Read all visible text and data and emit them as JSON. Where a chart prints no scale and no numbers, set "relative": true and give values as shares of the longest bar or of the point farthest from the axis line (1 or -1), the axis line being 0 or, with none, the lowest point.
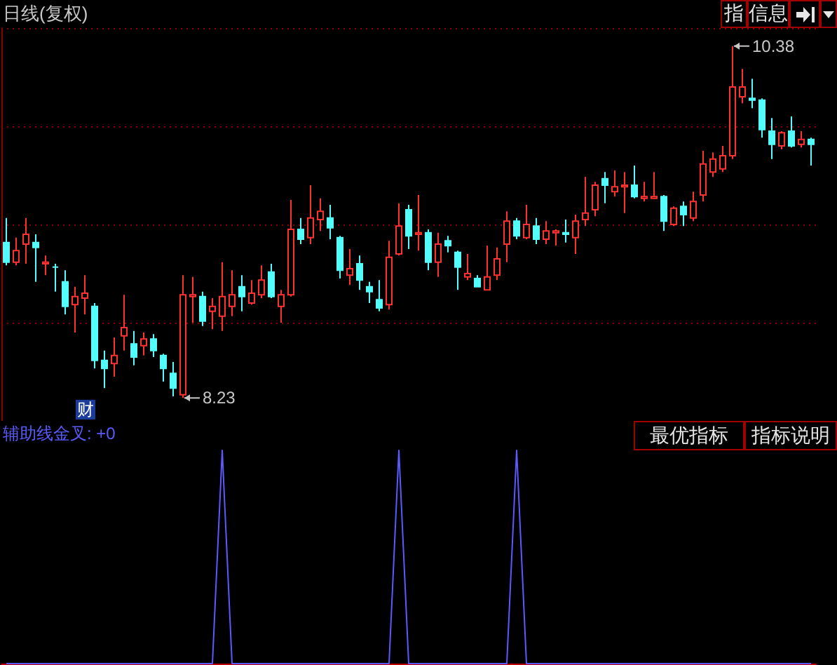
{
  "chart_data": [
    {
      "type": "candlestick",
      "title": "日线(复权)",
      "categories": [
        null,
        null,
        null,
        null,
        null,
        null,
        null,
        null,
        null,
        null,
        null,
        null,
        null,
        null,
        null,
        null,
        null,
        null,
        null,
        null,
        null,
        null,
        null,
        null,
        null,
        null,
        null,
        null,
        null,
        null,
        null,
        null,
        null,
        null,
        null,
        null,
        null,
        null,
        null,
        null,
        null,
        null,
        null,
        null,
        null,
        null,
        null,
        null,
        null,
        null,
        null,
        null,
        null,
        null,
        null,
        null,
        null,
        null,
        null,
        null,
        null,
        null,
        null,
        null,
        null,
        null,
        null,
        null,
        null,
        null,
        null,
        null,
        null,
        null,
        null,
        null,
        null,
        null,
        null,
        null,
        null,
        null,
        null
      ],
      "ohlc": [
        [
          9.18,
          9.33,
          9.04,
          9.06
        ],
        [
          9.06,
          9.21,
          9.04,
          9.13
        ],
        [
          9.17,
          9.33,
          9.05,
          9.23
        ],
        [
          9.18,
          9.23,
          8.94,
          9.15
        ],
        [
          9.05,
          9.1,
          8.98,
          9.06
        ],
        [
          9.03,
          9.05,
          8.88,
          9.03
        ],
        [
          8.94,
          9.01,
          8.74,
          8.79
        ],
        [
          8.8,
          8.91,
          8.63,
          8.85
        ],
        [
          8.84,
          8.98,
          8.74,
          8.87
        ],
        [
          8.79,
          8.81,
          8.41,
          8.46
        ],
        [
          8.46,
          8.52,
          8.29,
          8.41
        ],
        [
          8.44,
          8.6,
          8.36,
          8.49
        ],
        [
          8.61,
          8.86,
          8.52,
          8.66
        ],
        [
          8.56,
          8.64,
          8.43,
          8.48
        ],
        [
          8.55,
          8.63,
          8.49,
          8.59
        ],
        [
          8.59,
          8.62,
          8.48,
          8.52
        ],
        [
          8.49,
          8.5,
          8.33,
          8.41
        ],
        [
          8.38,
          8.45,
          8.24,
          8.29
        ],
        [
          8.25,
          8.98,
          8.23,
          8.86
        ],
        [
          8.85,
          8.97,
          8.69,
          8.86
        ],
        [
          8.85,
          8.88,
          8.67,
          8.7
        ],
        [
          8.76,
          8.84,
          8.65,
          8.79
        ],
        [
          8.73,
          9.06,
          8.64,
          8.85
        ],
        [
          8.79,
          9.01,
          8.73,
          8.86
        ],
        [
          8.91,
          8.98,
          8.76,
          8.85
        ],
        [
          8.81,
          8.95,
          8.8,
          8.87
        ],
        [
          8.86,
          9.04,
          8.84,
          8.95
        ],
        [
          9.0,
          9.05,
          8.84,
          8.85
        ],
        [
          8.79,
          8.89,
          8.69,
          8.86
        ],
        [
          8.86,
          9.44,
          8.85,
          9.26
        ],
        [
          9.26,
          9.33,
          9.17,
          9.2
        ],
        [
          9.21,
          9.53,
          9.17,
          9.33
        ],
        [
          9.32,
          9.45,
          9.25,
          9.37
        ],
        [
          9.33,
          9.41,
          9.2,
          9.27
        ],
        [
          9.21,
          9.22,
          8.96,
          9.01
        ],
        [
          8.98,
          9.14,
          8.92,
          9.02
        ],
        [
          9.05,
          9.1,
          8.89,
          8.95
        ],
        [
          8.91,
          8.94,
          8.81,
          8.88
        ],
        [
          8.83,
          8.95,
          8.76,
          8.78
        ],
        [
          8.8,
          9.19,
          8.77,
          9.09
        ],
        [
          9.11,
          9.42,
          9.1,
          9.28
        ],
        [
          9.38,
          9.41,
          9.14,
          9.22
        ],
        [
          9.23,
          9.47,
          9.13,
          9.24
        ],
        [
          9.24,
          9.26,
          9.01,
          9.06
        ],
        [
          9.06,
          9.24,
          8.97,
          9.17
        ],
        [
          9.19,
          9.22,
          9.12,
          9.16
        ],
        [
          9.12,
          9.13,
          8.89,
          9.03
        ],
        [
          8.97,
          9.11,
          8.95,
          8.99
        ],
        [
          8.96,
          8.98,
          8.91,
          8.91
        ],
        [
          8.89,
          9.16,
          8.89,
          8.97
        ],
        [
          8.98,
          9.15,
          8.95,
          9.08
        ],
        [
          9.17,
          9.37,
          9.06,
          9.31
        ],
        [
          9.31,
          9.33,
          9.2,
          9.22
        ],
        [
          9.21,
          9.41,
          9.2,
          9.29
        ],
        [
          9.28,
          9.33,
          9.17,
          9.2
        ],
        [
          9.2,
          9.31,
          9.17,
          9.25
        ],
        [
          9.24,
          9.26,
          9.16,
          9.25
        ],
        [
          9.24,
          9.32,
          9.18,
          9.23
        ],
        [
          9.21,
          9.35,
          9.11,
          9.31
        ],
        [
          9.32,
          9.58,
          9.28,
          9.36
        ],
        [
          9.38,
          9.55,
          9.34,
          9.53
        ],
        [
          9.57,
          9.61,
          9.42,
          9.53
        ],
        [
          9.49,
          9.62,
          9.46,
          9.52
        ],
        [
          9.52,
          9.61,
          9.36,
          9.53
        ],
        [
          9.53,
          9.65,
          9.45,
          9.46
        ],
        [
          9.45,
          9.55,
          9.43,
          9.46
        ],
        [
          9.45,
          9.61,
          9.45,
          9.46
        ],
        [
          9.46,
          9.47,
          9.25,
          9.31
        ],
        [
          9.29,
          9.4,
          9.28,
          9.39
        ],
        [
          9.4,
          9.43,
          9.28,
          9.35
        ],
        [
          9.33,
          9.49,
          9.31,
          9.43
        ],
        [
          9.47,
          9.74,
          9.43,
          9.66
        ],
        [
          9.61,
          9.73,
          9.58,
          9.69
        ],
        [
          9.63,
          9.77,
          9.61,
          9.71
        ],
        [
          9.71,
          10.38,
          9.69,
          10.13
        ],
        [
          10.07,
          10.24,
          10.03,
          10.13
        ],
        [
          10.06,
          10.18,
          10.0,
          10.05
        ],
        [
          10.05,
          10.06,
          9.82,
          9.87
        ],
        [
          9.86,
          9.94,
          9.69,
          9.78
        ],
        [
          9.77,
          9.86,
          9.75,
          9.85
        ],
        [
          9.86,
          9.95,
          9.76,
          9.77
        ],
        [
          9.78,
          9.86,
          9.76,
          9.81
        ],
        [
          9.81,
          9.82,
          9.65,
          9.78
        ]
      ],
      "colors": [
        "#54fcfc",
        "#ff3232",
        "#ff3232",
        "#54fcfc",
        "#ff3232",
        "#54fcfc",
        "#54fcfc",
        "#ff3232",
        "#ff3232",
        "#54fcfc",
        "#54fcfc",
        "#ff3232",
        "#ff3232",
        "#54fcfc",
        "#ff3232",
        "#54fcfc",
        "#54fcfc",
        "#54fcfc",
        "#ff3232",
        "#ff3232",
        "#54fcfc",
        "#ff3232",
        "#ff3232",
        "#ff3232",
        "#54fcfc",
        "#ff3232",
        "#ff3232",
        "#54fcfc",
        "#ff3232",
        "#ff3232",
        "#54fcfc",
        "#ff3232",
        "#ff3232",
        "#54fcfc",
        "#54fcfc",
        "#ff3232",
        "#54fcfc",
        "#54fcfc",
        "#54fcfc",
        "#ff3232",
        "#ff3232",
        "#54fcfc",
        "#ff3232",
        "#54fcfc",
        "#ff3232",
        "#54fcfc",
        "#54fcfc",
        "#ff3232",
        "#54fcfc",
        "#ff3232",
        "#ff3232",
        "#ff3232",
        "#54fcfc",
        "#ff3232",
        "#54fcfc",
        "#ff3232",
        "#ff3232",
        "#54fcfc",
        "#ff3232",
        "#ff3232",
        "#ff3232",
        "#54fcfc",
        "#ff3232",
        "#ff3232",
        "#54fcfc",
        "#ff3232",
        "#ff3232",
        "#54fcfc",
        "#ff3232",
        "#54fcfc",
        "#ff3232",
        "#ff3232",
        "#ff3232",
        "#ff3232",
        "#ff3232",
        "#ff3232",
        "#54fcfc",
        "#54fcfc",
        "#54fcfc",
        "#ff3232",
        "#54fcfc",
        "#ff3232",
        "#54fcfc"
      ],
      "ylim": [
        8.09,
        10.49
      ],
      "yticks": [
        {
          "value": 8.69,
          "label": null
        },
        {
          "value": 9.29,
          "label": null
        },
        {
          "value": 9.89,
          "label": null
        },
        {
          "value": 10.49,
          "label": null
        }
      ],
      "grid": "y",
      "tick_labels": false,
      "annotations": [
        "10.38",
        "8.23",
        "财",
        "指",
        "信息"
      ]
    },
    {
      "type": "line",
      "title": "辅助线金叉: +0",
      "relative": true,
      "color": "#5a5aff",
      "marker": "none",
      "tick_labels": false,
      "categories": [
        null,
        null,
        null,
        null,
        null,
        null,
        null,
        null,
        null,
        null,
        null,
        null,
        null,
        null,
        null,
        null,
        null,
        null,
        null,
        null,
        null,
        null,
        null,
        null,
        null,
        null,
        null,
        null,
        null,
        null,
        null,
        null,
        null,
        null,
        null,
        null,
        null,
        null,
        null,
        null,
        null,
        null,
        null,
        null,
        null,
        null,
        null,
        null,
        null,
        null,
        null,
        null,
        null,
        null,
        null,
        null,
        null,
        null,
        null,
        null,
        null,
        null,
        null,
        null,
        null,
        null,
        null,
        null,
        null,
        null,
        null,
        null,
        null,
        null,
        null,
        null,
        null,
        null,
        null,
        null,
        null,
        null,
        null
      ],
      "values": [
        0,
        0,
        0,
        0,
        0,
        0,
        0,
        0,
        0,
        0,
        0,
        0,
        0,
        0,
        0,
        0,
        0,
        0,
        0,
        0,
        0,
        0,
        1,
        0,
        0,
        0,
        0,
        0,
        0,
        0,
        0,
        0,
        0,
        0,
        0,
        0,
        0,
        0,
        0,
        0,
        1,
        0,
        0,
        0,
        0,
        0,
        0,
        0,
        0,
        0,
        0,
        0,
        1,
        0,
        0,
        0,
        0,
        0,
        0,
        0,
        0,
        0,
        0,
        0,
        0,
        0,
        0,
        0,
        0,
        0,
        0,
        0,
        0,
        0,
        0,
        0,
        0,
        0,
        0,
        0,
        0,
        0,
        0
      ],
      "annotations": [
        "最优指标",
        "指标说明"
      ]
    }
  ]
}
